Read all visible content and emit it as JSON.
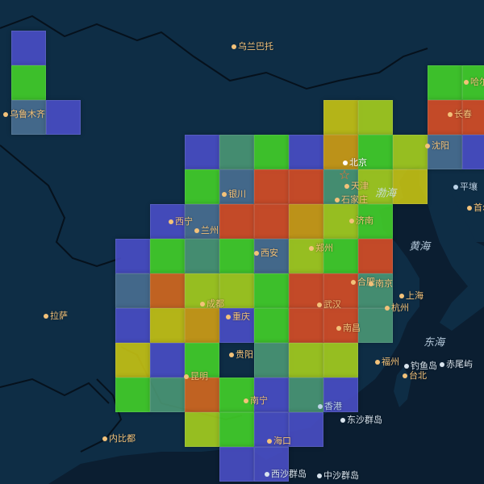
{
  "map": {
    "palette": {
      "blue": "#4b4fc9",
      "teal": "#4c9a77",
      "steel": "#4b7194",
      "green": "#44d428",
      "lime": "#a9d21d",
      "yellow": "#cbc712",
      "orange": "#d5a113",
      "dorange": "#d96a1e",
      "red": "#dc4e25",
      "land": "#0e2d45",
      "sea": "#0b1e31",
      "border": "#06111c"
    },
    "cities": [
      {
        "name": "乌兰巴托",
        "color": "#f3c27a"
      },
      {
        "name": "乌鲁木齐",
        "color": "#f3c27a"
      },
      {
        "name": "哈尔",
        "color": "#f3c27a"
      },
      {
        "name": "长春",
        "color": "#f3c27a"
      },
      {
        "name": "沈阳",
        "color": "#f3c27a"
      },
      {
        "name": "平壤",
        "color": "#bcd3e8"
      },
      {
        "name": "首尔",
        "color": "#f3c27a"
      },
      {
        "name": "北京",
        "color": "#ffffff"
      },
      {
        "name": "天津",
        "color": "#f3c27a"
      },
      {
        "name": "石家庄",
        "color": "#f3c27a"
      },
      {
        "name": "济南",
        "color": "#f3c27a"
      },
      {
        "name": "银川",
        "color": "#f3c27a"
      },
      {
        "name": "西宁",
        "color": "#f3c27a"
      },
      {
        "name": "兰州",
        "color": "#f3c27a"
      },
      {
        "name": "西安",
        "color": "#f3c27a"
      },
      {
        "name": "郑州",
        "color": "#f3c27a"
      },
      {
        "name": "合肥",
        "color": "#f3c27a"
      },
      {
        "name": "南京",
        "color": "#f3c27a"
      },
      {
        "name": "上海",
        "color": "#f3c27a"
      },
      {
        "name": "武汉",
        "color": "#f3c27a"
      },
      {
        "name": "杭州",
        "color": "#f3c27a"
      },
      {
        "name": "成都",
        "color": "#f3c27a"
      },
      {
        "name": "重庆",
        "color": "#f3c27a"
      },
      {
        "name": "拉萨",
        "color": "#f3c27a"
      },
      {
        "name": "南昌",
        "color": "#f3c27a"
      },
      {
        "name": "福州",
        "color": "#f3c27a"
      },
      {
        "name": "贵阳",
        "color": "#f3c27a"
      },
      {
        "name": "昆明",
        "color": "#f3c27a"
      },
      {
        "name": "南宁",
        "color": "#f3c27a"
      },
      {
        "name": "钓鱼岛",
        "color": "#d9e4ee"
      },
      {
        "name": "台北",
        "color": "#f3c27a"
      },
      {
        "name": "赤尾屿",
        "color": "#d9e4ee"
      },
      {
        "name": "香港",
        "color": "#bcd3e8"
      },
      {
        "name": "东沙群岛",
        "color": "#d9e4ee"
      },
      {
        "name": "内比都",
        "color": "#f3c27a"
      },
      {
        "name": "海口",
        "color": "#f3c27a"
      },
      {
        "name": "西沙群岛",
        "color": "#d9e4ee"
      },
      {
        "name": "中沙群岛",
        "color": "#d9e4ee"
      }
    ],
    "seas": [
      "渤海",
      "黄海",
      "东海"
    ],
    "grid": [
      "blue",
      null,
      null,
      null,
      null,
      null,
      null,
      null,
      null,
      null,
      null,
      null,
      null,
      null,
      "green",
      null,
      null,
      null,
      null,
      null,
      null,
      null,
      null,
      null,
      null,
      null,
      "green",
      "green",
      "steel",
      "blue",
      null,
      null,
      null,
      null,
      null,
      null,
      null,
      "yellow",
      "lime",
      null,
      "red",
      "red",
      null,
      null,
      null,
      null,
      null,
      "blue",
      "teal",
      "green",
      "blue",
      "orange",
      "green",
      "lime",
      "steel",
      "blue",
      null,
      null,
      null,
      null,
      null,
      "green",
      "steel",
      "red",
      "red",
      "teal",
      "lime",
      "yellow",
      null,
      null,
      null,
      null,
      null,
      null,
      "blue",
      "steel",
      "red",
      "red",
      "orange",
      "lime",
      "green",
      null,
      null,
      null,
      null,
      null,
      null,
      "blue",
      "green",
      "teal",
      "green",
      "steel",
      "lime",
      "green",
      "red",
      null,
      null,
      null,
      null,
      null,
      null,
      "steel",
      "dorange",
      "lime",
      "lime",
      "green",
      "red",
      "red",
      "teal",
      null,
      null,
      null,
      null,
      null,
      null,
      "blue",
      "yellow",
      "orange",
      "blue",
      "green",
      "red",
      "red",
      "teal",
      null,
      null,
      null,
      null,
      null,
      null,
      "yellow",
      "blue",
      "green",
      null,
      "teal",
      "lime",
      "lime",
      null,
      null,
      null,
      null,
      null,
      null,
      null,
      "green",
      "teal",
      "dorange",
      "green",
      "blue",
      "teal",
      "blue",
      null,
      null,
      null,
      null,
      null,
      null,
      null,
      null,
      null,
      "lime",
      "green",
      "blue",
      "blue",
      null,
      null,
      null,
      null,
      null,
      null,
      null,
      null,
      null,
      null,
      null,
      "blue",
      "blue",
      null,
      null,
      null,
      null,
      null,
      null
    ]
  }
}
